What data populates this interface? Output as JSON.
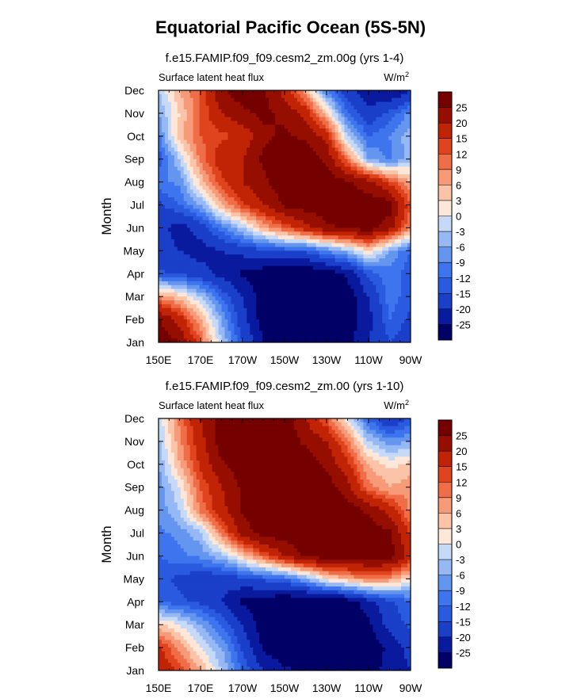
{
  "page_title": "Equatorial Pacific Ocean (5S-5N)",
  "colors": [
    "#000066",
    "#0a1a9e",
    "#1a3fc8",
    "#2a5ae0",
    "#3e74ee",
    "#6496f0",
    "#96b8f5",
    "#c6daf8",
    "#fde7d8",
    "#fbc4a8",
    "#f79a78",
    "#ef6e48",
    "#e0441e",
    "#c02404",
    "#960e00",
    "#740000"
  ],
  "colorbar_labels": [
    "-25",
    "-20",
    "-15",
    "-12",
    "-9",
    "-6",
    "-3",
    "0",
    "3",
    "6",
    "9",
    "12",
    "15",
    "20",
    "25"
  ],
  "chart_data": [
    {
      "type": "heatmap",
      "title": "f.e15.FAMIP.f09_f09.cesm2_zm.00g (yrs 1-4)",
      "left_label": "Surface latent heat flux",
      "units_base": "W/m",
      "units_exp": "2",
      "ylabel": "Month",
      "x_ticks": [
        "150E",
        "170E",
        "170W",
        "150W",
        "130W",
        "110W",
        "90W"
      ],
      "y_ticks": [
        "Jan",
        "Feb",
        "Mar",
        "Apr",
        "May",
        "Jun",
        "Jul",
        "Aug",
        "Sep",
        "Oct",
        "Nov",
        "Dec"
      ],
      "x_range_deg": [
        150,
        270
      ],
      "levels": [
        -25,
        -20,
        -15,
        -12,
        -9,
        -6,
        -3,
        0,
        3,
        6,
        9,
        12,
        15,
        20,
        25
      ],
      "approx_values": {
        "lons": [
          150,
          160,
          170,
          180,
          190,
          200,
          210,
          220,
          230,
          240,
          250,
          260,
          270
        ],
        "months": [
          "Jan",
          "Feb",
          "Mar",
          "Apr",
          "May",
          "Jun",
          "Jul",
          "Aug",
          "Sep",
          "Oct",
          "Nov",
          "Dec"
        ],
        "rows": [
          [
            28,
            25,
            12,
            -3,
            -15,
            -25,
            -28,
            -28,
            -28,
            -27,
            -20,
            -15,
            -18
          ],
          [
            26,
            18,
            6,
            -6,
            -18,
            -28,
            -30,
            -30,
            -30,
            -28,
            -22,
            -12,
            -16
          ],
          [
            8,
            4,
            -3,
            -12,
            -20,
            -28,
            -30,
            -30,
            -30,
            -28,
            -20,
            -10,
            -14
          ],
          [
            -14,
            -16,
            -18,
            -22,
            -26,
            -28,
            -30,
            -30,
            -28,
            -24,
            -14,
            -10,
            -14
          ],
          [
            -18,
            -20,
            -22,
            -20,
            -18,
            -16,
            -14,
            -14,
            -9,
            -4,
            3,
            -6,
            -12
          ],
          [
            -18,
            -22,
            -18,
            -10,
            -3,
            6,
            12,
            18,
            24,
            26,
            28,
            22,
            8
          ],
          [
            -16,
            -12,
            -6,
            6,
            14,
            20,
            26,
            28,
            28,
            28,
            28,
            28,
            12
          ],
          [
            -10,
            -8,
            4,
            14,
            20,
            24,
            28,
            28,
            28,
            26,
            22,
            14,
            6
          ],
          [
            -14,
            -3,
            10,
            18,
            20,
            26,
            28,
            28,
            24,
            10,
            -6,
            -10,
            -4
          ],
          [
            -10,
            5,
            12,
            14,
            16,
            24,
            26,
            24,
            18,
            -3,
            -12,
            -9,
            -4
          ],
          [
            -6,
            3,
            12,
            20,
            24,
            26,
            24,
            18,
            4,
            -12,
            -18,
            -14,
            -8
          ],
          [
            -3,
            6,
            12,
            24,
            28,
            26,
            18,
            6,
            -9,
            -18,
            -24,
            -26,
            -20
          ]
        ]
      }
    },
    {
      "type": "heatmap",
      "title": "f.e15.FAMIP.f09_f09.cesm2_zm.00 (yrs 1-10)",
      "left_label": "Surface latent heat flux",
      "units_base": "W/m",
      "units_exp": "2",
      "ylabel": "Month",
      "x_ticks": [
        "150E",
        "170E",
        "170W",
        "150W",
        "130W",
        "110W",
        "90W"
      ],
      "y_ticks": [
        "Jan",
        "Feb",
        "Mar",
        "Apr",
        "May",
        "Jun",
        "Jul",
        "Aug",
        "Sep",
        "Oct",
        "Nov",
        "Dec"
      ],
      "x_range_deg": [
        150,
        270
      ],
      "levels": [
        -25,
        -20,
        -15,
        -12,
        -9,
        -6,
        -3,
        0,
        3,
        6,
        9,
        12,
        15,
        20,
        25
      ],
      "approx_values": {
        "lons": [
          150,
          160,
          170,
          180,
          190,
          200,
          210,
          220,
          230,
          240,
          250,
          260,
          270
        ],
        "months": [
          "Jan",
          "Feb",
          "Mar",
          "Apr",
          "May",
          "Jun",
          "Jul",
          "Aug",
          "Sep",
          "Oct",
          "Nov",
          "Dec"
        ],
        "rows": [
          [
            20,
            14,
            6,
            -3,
            -12,
            -20,
            -24,
            -26,
            -28,
            -28,
            -26,
            -24,
            -20
          ],
          [
            16,
            8,
            0,
            -6,
            -16,
            -26,
            -30,
            -30,
            -30,
            -30,
            -28,
            -24,
            -18
          ],
          [
            4,
            0,
            -6,
            -12,
            -20,
            -28,
            -30,
            -30,
            -30,
            -30,
            -26,
            -18,
            -14
          ],
          [
            -12,
            -14,
            -16,
            -20,
            -26,
            -28,
            -30,
            -30,
            -30,
            -28,
            -22,
            -16,
            -12
          ],
          [
            -14,
            -16,
            -18,
            -18,
            -16,
            -14,
            -12,
            -6,
            2,
            6,
            10,
            8,
            2
          ],
          [
            -12,
            -10,
            -8,
            -4,
            4,
            12,
            20,
            26,
            28,
            28,
            28,
            28,
            18
          ],
          [
            -10,
            -8,
            -4,
            10,
            22,
            28,
            28,
            28,
            28,
            28,
            28,
            26,
            14
          ],
          [
            -8,
            -3,
            10,
            18,
            26,
            28,
            28,
            28,
            28,
            28,
            24,
            18,
            8
          ],
          [
            -8,
            0,
            12,
            20,
            26,
            28,
            28,
            28,
            28,
            22,
            10,
            6,
            8
          ],
          [
            -6,
            6,
            16,
            24,
            28,
            28,
            28,
            28,
            24,
            16,
            6,
            2,
            4
          ],
          [
            -4,
            8,
            18,
            28,
            28,
            28,
            28,
            24,
            20,
            10,
            -3,
            -8,
            -6
          ],
          [
            -2,
            10,
            20,
            28,
            28,
            28,
            28,
            20,
            12,
            0,
            -12,
            -20,
            -14
          ]
        ]
      }
    }
  ]
}
